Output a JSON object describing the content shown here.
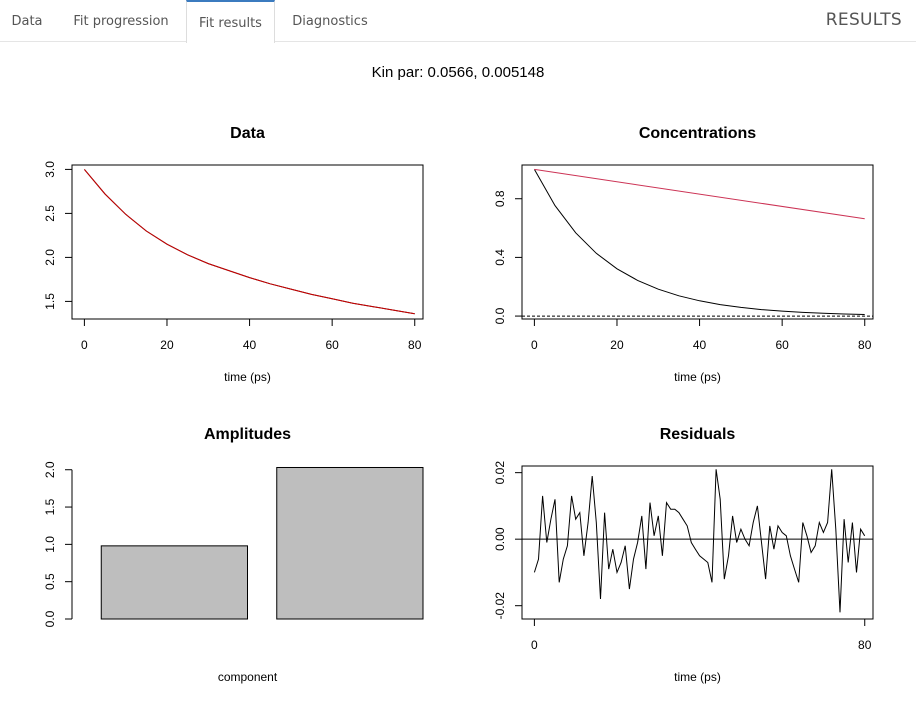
{
  "tabs": [
    {
      "label": "Data"
    },
    {
      "label": "Fit progression"
    },
    {
      "label": "Fit results"
    },
    {
      "label": "Diagnostics"
    }
  ],
  "active_tab": "Fit results",
  "brand": "RESULTS",
  "kin_par_text": "Kin par: 0.0566, 0.005148",
  "chart_data": [
    {
      "type": "line",
      "title": "Data",
      "xlabel": "time (ps)",
      "ylabel": "",
      "xlim": [
        -3,
        82
      ],
      "ylim": [
        1.3,
        3.05
      ],
      "xticks": [
        0,
        20,
        40,
        60,
        80
      ],
      "yticks": [
        1.5,
        2.0,
        2.5,
        3.0
      ],
      "series": [
        {
          "color": "#000000",
          "x": [
            0,
            5,
            10,
            15,
            20,
            25,
            30,
            35,
            40,
            45,
            50,
            55,
            60,
            65,
            70,
            75,
            80
          ],
          "y": [
            3.0,
            2.72,
            2.49,
            2.3,
            2.15,
            2.03,
            1.93,
            1.85,
            1.77,
            1.7,
            1.64,
            1.58,
            1.53,
            1.48,
            1.44,
            1.4,
            1.36
          ]
        },
        {
          "color": "#cc0000",
          "x": [
            0,
            5,
            10,
            15,
            20,
            25,
            30,
            35,
            40,
            45,
            50,
            55,
            60,
            65,
            70,
            75,
            80
          ],
          "y": [
            3.0,
            2.72,
            2.49,
            2.3,
            2.15,
            2.03,
            1.93,
            1.85,
            1.77,
            1.7,
            1.64,
            1.58,
            1.53,
            1.48,
            1.44,
            1.4,
            1.36
          ]
        }
      ]
    },
    {
      "type": "line",
      "title": "Concentrations",
      "xlabel": "time (ps)",
      "ylabel": "",
      "xlim": [
        -3,
        82
      ],
      "ylim": [
        -0.02,
        1.03
      ],
      "xticks": [
        0,
        20,
        40,
        60,
        80
      ],
      "yticks": [
        0.0,
        0.4,
        0.8
      ],
      "baseline": 0,
      "series": [
        {
          "color": "#000000",
          "x": [
            0,
            5,
            10,
            15,
            20,
            25,
            30,
            35,
            40,
            45,
            50,
            55,
            60,
            65,
            70,
            75,
            80
          ],
          "y": [
            1.0,
            0.753,
            0.568,
            0.428,
            0.322,
            0.243,
            0.183,
            0.138,
            0.104,
            0.078,
            0.059,
            0.044,
            0.034,
            0.025,
            0.019,
            0.014,
            0.011
          ]
        },
        {
          "color": "#cc3355",
          "x": [
            0,
            80
          ],
          "y": [
            1.0,
            0.663
          ]
        }
      ]
    },
    {
      "type": "bar",
      "title": "Amplitudes",
      "xlabel": "component",
      "ylabel": "",
      "ylim": [
        0,
        2.05
      ],
      "yticks": [
        0.0,
        0.5,
        1.0,
        1.5,
        2.0
      ],
      "categories": [
        "",
        ""
      ],
      "values": [
        0.98,
        2.03
      ],
      "bar_color": "#bebebe"
    },
    {
      "type": "line",
      "title": "Residuals",
      "xlabel": "time (ps)",
      "ylabel": "",
      "xlim": [
        -3,
        82
      ],
      "ylim": [
        -0.024,
        0.022
      ],
      "xticks": [
        0,
        80
      ],
      "yticks": [
        -0.02,
        0.0,
        0.02
      ],
      "baseline": 0,
      "series": [
        {
          "color": "#000000",
          "x": [
            0,
            1,
            2,
            3,
            4,
            5,
            6,
            7,
            8,
            9,
            10,
            11,
            12,
            13,
            14,
            15,
            16,
            17,
            18,
            19,
            20,
            21,
            22,
            23,
            24,
            25,
            26,
            27,
            28,
            29,
            30,
            31,
            32,
            33,
            34,
            35,
            36,
            37,
            38,
            39,
            40,
            41,
            42,
            43,
            44,
            45,
            46,
            47,
            48,
            49,
            50,
            51,
            52,
            53,
            54,
            55,
            56,
            57,
            58,
            59,
            60,
            61,
            62,
            63,
            64,
            65,
            66,
            67,
            68,
            69,
            70,
            71,
            72,
            73,
            74,
            75,
            76,
            77,
            78,
            79,
            80
          ],
          "y": [
            -0.01,
            -0.006,
            0.013,
            -0.001,
            0.006,
            0.012,
            -0.013,
            -0.006,
            -0.002,
            0.013,
            0.006,
            0.008,
            -0.005,
            0.005,
            0.019,
            0.005,
            -0.018,
            0.008,
            -0.009,
            -0.003,
            -0.01,
            -0.007,
            -0.002,
            -0.015,
            -0.006,
            -0.001,
            0.007,
            -0.009,
            0.011,
            0.001,
            0.007,
            -0.005,
            0.011,
            0.009,
            0.009,
            0.008,
            0.006,
            0.004,
            -0.001,
            -0.003,
            -0.005,
            -0.006,
            -0.007,
            -0.013,
            0.021,
            0.012,
            -0.012,
            -0.005,
            0.007,
            -0.001,
            0.003,
            0.0,
            -0.002,
            0.005,
            0.01,
            -0.001,
            -0.012,
            0.004,
            -0.003,
            0.004,
            0.002,
            0.001,
            -0.005,
            -0.009,
            -0.013,
            0.005,
            0.001,
            -0.004,
            -0.002,
            0.005,
            0.002,
            0.005,
            0.021,
            0.003,
            -0.022,
            0.006,
            -0.007,
            0.005,
            -0.01,
            0.003,
            0.001
          ]
        }
      ]
    }
  ]
}
